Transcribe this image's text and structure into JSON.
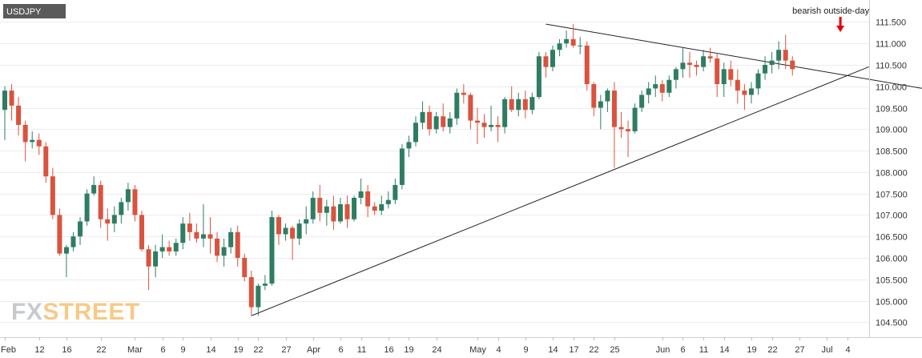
{
  "chart_data": {
    "type": "candlestick",
    "symbol": "USDJPY",
    "watermark": {
      "left": "FX",
      "right": "STREET"
    },
    "annotation": "bearish outside-day",
    "y_ticks": [
      "104.500",
      "105.000",
      "105.500",
      "106.000",
      "106.500",
      "107.000",
      "107.500",
      "108.000",
      "108.500",
      "109.000",
      "109.500",
      "110.000",
      "110.500",
      "111.000",
      "111.500"
    ],
    "ylim": [
      104.3,
      111.9
    ],
    "x_ticks": [
      {
        "label": "Feb",
        "i": 0
      },
      {
        "label": "12",
        "i": 5
      },
      {
        "label": "16",
        "i": 9
      },
      {
        "label": "22",
        "i": 14
      },
      {
        "label": "Mar",
        "i": 19
      },
      {
        "label": "6",
        "i": 23
      },
      {
        "label": "9",
        "i": 26
      },
      {
        "label": "14",
        "i": 30
      },
      {
        "label": "19",
        "i": 34
      },
      {
        "label": "22",
        "i": 37
      },
      {
        "label": "27",
        "i": 41
      },
      {
        "label": "Apr",
        "i": 45
      },
      {
        "label": "6",
        "i": 49
      },
      {
        "label": "11",
        "i": 52
      },
      {
        "label": "16",
        "i": 56
      },
      {
        "label": "19",
        "i": 59
      },
      {
        "label": "24",
        "i": 63
      },
      {
        "label": "May",
        "i": 69
      },
      {
        "label": "4",
        "i": 72
      },
      {
        "label": "9",
        "i": 76
      },
      {
        "label": "14",
        "i": 80
      },
      {
        "label": "17",
        "i": 83
      },
      {
        "label": "22",
        "i": 86
      },
      {
        "label": "25",
        "i": 89
      },
      {
        "label": "Jun",
        "i": 96
      },
      {
        "label": "6",
        "i": 99
      },
      {
        "label": "11",
        "i": 102
      },
      {
        "label": "14",
        "i": 105
      },
      {
        "label": "19",
        "i": 109
      },
      {
        "label": "22",
        "i": 112
      },
      {
        "label": "27",
        "i": 116
      },
      {
        "label": "Jul",
        "i": 120
      },
      {
        "label": "4",
        "i": 123
      }
    ],
    "candles": [
      [
        109.45,
        110.0,
        108.75,
        109.9
      ],
      [
        109.9,
        110.05,
        109.2,
        109.55
      ],
      [
        109.55,
        109.75,
        108.85,
        109.1
      ],
      [
        109.1,
        109.2,
        108.25,
        108.7
      ],
      [
        108.7,
        108.95,
        108.55,
        108.75
      ],
      [
        108.75,
        108.9,
        108.4,
        108.6
      ],
      [
        108.6,
        108.7,
        107.75,
        107.9
      ],
      [
        107.9,
        108.1,
        106.9,
        107.0
      ],
      [
        107.0,
        107.15,
        106.05,
        106.1
      ],
      [
        106.1,
        106.3,
        105.55,
        106.25
      ],
      [
        106.25,
        106.6,
        106.15,
        106.5
      ],
      [
        106.5,
        106.95,
        106.3,
        106.85
      ],
      [
        106.85,
        107.6,
        106.75,
        107.5
      ],
      [
        107.5,
        107.9,
        107.45,
        107.7
      ],
      [
        107.7,
        107.8,
        106.7,
        106.9
      ],
      [
        106.9,
        107.15,
        106.4,
        106.8
      ],
      [
        106.8,
        107.2,
        106.6,
        107.0
      ],
      [
        107.0,
        107.4,
        106.8,
        107.3
      ],
      [
        107.3,
        107.75,
        107.1,
        107.6
      ],
      [
        107.6,
        107.7,
        106.85,
        107.0
      ],
      [
        107.0,
        107.1,
        106.15,
        106.2
      ],
      [
        106.2,
        106.3,
        105.25,
        105.8
      ],
      [
        105.8,
        106.3,
        105.55,
        106.15
      ],
      [
        106.15,
        106.55,
        106.0,
        106.25
      ],
      [
        106.25,
        106.4,
        106.05,
        106.15
      ],
      [
        106.15,
        106.45,
        106.05,
        106.35
      ],
      [
        106.35,
        106.95,
        106.2,
        106.8
      ],
      [
        106.8,
        107.05,
        106.4,
        106.6
      ],
      [
        106.6,
        106.8,
        106.35,
        106.45
      ],
      [
        106.45,
        107.25,
        106.25,
        106.55
      ],
      [
        106.55,
        106.95,
        106.1,
        106.45
      ],
      [
        106.45,
        106.6,
        105.9,
        106.05
      ],
      [
        106.05,
        106.45,
        105.8,
        106.25
      ],
      [
        106.25,
        106.7,
        106.1,
        106.6
      ],
      [
        106.6,
        106.75,
        105.8,
        106.0
      ],
      [
        106.0,
        106.1,
        105.45,
        105.55
      ],
      [
        105.55,
        105.7,
        104.65,
        104.85
      ],
      [
        104.85,
        105.4,
        104.65,
        105.35
      ],
      [
        105.35,
        105.6,
        105.25,
        105.4
      ],
      [
        105.4,
        107.1,
        105.35,
        106.95
      ],
      [
        106.95,
        107.0,
        106.3,
        106.55
      ],
      [
        106.55,
        106.8,
        106.4,
        106.7
      ],
      [
        106.7,
        106.75,
        105.95,
        106.45
      ],
      [
        106.45,
        106.9,
        106.3,
        106.8
      ],
      [
        106.8,
        107.2,
        106.55,
        106.9
      ],
      [
        106.9,
        107.55,
        106.8,
        107.4
      ],
      [
        107.4,
        107.7,
        106.85,
        107.05
      ],
      [
        107.05,
        107.35,
        106.75,
        107.2
      ],
      [
        107.2,
        107.45,
        106.65,
        106.85
      ],
      [
        106.85,
        107.4,
        106.8,
        107.25
      ],
      [
        107.25,
        107.45,
        106.7,
        106.9
      ],
      [
        106.9,
        107.45,
        106.85,
        107.4
      ],
      [
        107.4,
        107.85,
        107.25,
        107.55
      ],
      [
        107.55,
        107.7,
        106.95,
        107.2
      ],
      [
        107.2,
        107.3,
        107.0,
        107.1
      ],
      [
        107.1,
        107.45,
        107.0,
        107.25
      ],
      [
        107.25,
        107.55,
        107.15,
        107.35
      ],
      [
        107.35,
        107.85,
        107.25,
        107.7
      ],
      [
        107.7,
        108.65,
        107.6,
        108.55
      ],
      [
        108.55,
        108.85,
        108.35,
        108.7
      ],
      [
        108.7,
        109.3,
        108.6,
        109.15
      ],
      [
        109.15,
        109.65,
        109.0,
        109.4
      ],
      [
        109.4,
        109.55,
        108.85,
        109.0
      ],
      [
        109.0,
        109.4,
        108.9,
        109.3
      ],
      [
        109.3,
        109.6,
        108.95,
        109.05
      ],
      [
        109.05,
        109.4,
        108.9,
        109.25
      ],
      [
        109.25,
        109.95,
        109.1,
        109.85
      ],
      [
        109.85,
        110.05,
        109.6,
        109.8
      ],
      [
        109.8,
        109.85,
        109.0,
        109.2
      ],
      [
        109.2,
        109.5,
        108.65,
        109.15
      ],
      [
        109.15,
        109.35,
        108.8,
        109.05
      ],
      [
        109.05,
        109.55,
        108.95,
        109.1
      ],
      [
        109.1,
        109.3,
        108.7,
        109.05
      ],
      [
        109.05,
        109.75,
        108.9,
        109.7
      ],
      [
        109.7,
        110.0,
        109.4,
        109.45
      ],
      [
        109.45,
        109.85,
        109.3,
        109.7
      ],
      [
        109.7,
        109.9,
        109.25,
        109.45
      ],
      [
        109.45,
        109.85,
        109.35,
        109.75
      ],
      [
        109.75,
        110.8,
        109.7,
        110.7
      ],
      [
        110.7,
        110.8,
        110.2,
        110.45
      ],
      [
        110.45,
        110.95,
        110.35,
        110.85
      ],
      [
        110.85,
        111.1,
        110.7,
        111.0
      ],
      [
        111.0,
        111.3,
        110.9,
        111.1
      ],
      [
        111.1,
        111.45,
        110.9,
        110.95
      ],
      [
        110.95,
        111.15,
        110.75,
        110.95
      ],
      [
        110.95,
        111.05,
        109.9,
        110.05
      ],
      [
        110.05,
        110.1,
        109.3,
        109.5
      ],
      [
        109.5,
        109.8,
        109.0,
        109.65
      ],
      [
        109.65,
        109.95,
        109.4,
        109.9
      ],
      [
        109.9,
        110.1,
        108.1,
        109.05
      ],
      [
        109.05,
        109.4,
        108.8,
        109.0
      ],
      [
        109.0,
        109.2,
        108.35,
        108.95
      ],
      [
        108.95,
        109.6,
        108.9,
        109.5
      ],
      [
        109.5,
        109.9,
        109.4,
        109.8
      ],
      [
        109.8,
        110.1,
        109.6,
        109.95
      ],
      [
        109.95,
        110.25,
        109.75,
        110.05
      ],
      [
        110.05,
        110.15,
        109.65,
        109.85
      ],
      [
        109.85,
        110.25,
        109.75,
        110.15
      ],
      [
        110.15,
        110.45,
        109.95,
        110.4
      ],
      [
        110.4,
        110.9,
        110.2,
        110.55
      ],
      [
        110.55,
        110.8,
        110.2,
        110.5
      ],
      [
        110.5,
        110.6,
        110.25,
        110.45
      ],
      [
        110.45,
        110.85,
        110.35,
        110.7
      ],
      [
        110.7,
        110.9,
        110.55,
        110.65
      ],
      [
        110.65,
        110.75,
        109.75,
        110.05
      ],
      [
        110.05,
        110.55,
        109.75,
        110.4
      ],
      [
        110.4,
        110.6,
        110.0,
        110.15
      ],
      [
        110.15,
        110.4,
        109.6,
        109.9
      ],
      [
        109.9,
        110.05,
        109.45,
        109.8
      ],
      [
        109.8,
        110.1,
        109.6,
        109.95
      ],
      [
        109.95,
        110.4,
        109.8,
        110.3
      ],
      [
        110.3,
        110.7,
        110.15,
        110.5
      ],
      [
        110.5,
        110.8,
        110.3,
        110.6
      ],
      [
        110.6,
        111.05,
        110.4,
        110.85
      ],
      [
        110.85,
        111.2,
        110.4,
        110.6
      ],
      [
        110.6,
        110.7,
        110.25,
        110.4
      ]
    ]
  }
}
